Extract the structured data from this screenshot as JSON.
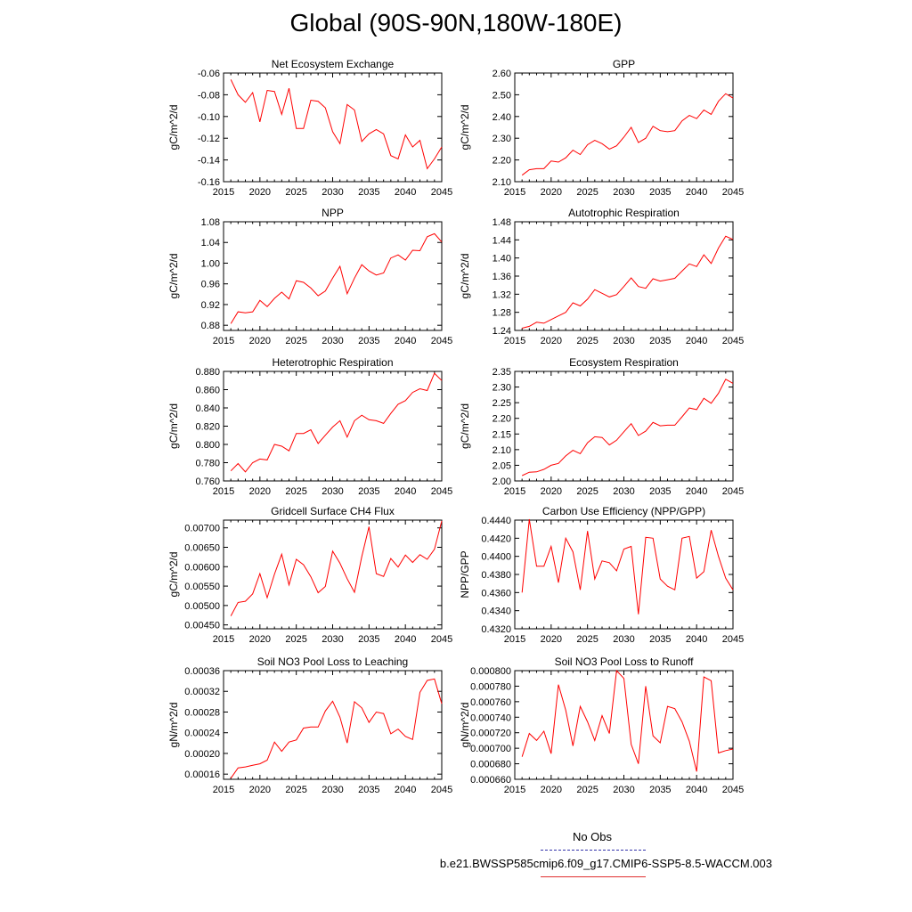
{
  "title": "Global (90S-90N,180W-180E)",
  "legend": {
    "obs_label": "No Obs",
    "run_label": "b.e21.BWSSP585cmip6.f09_g17.CMIP6-SSP5-8.5-WACCM.003",
    "run_color": "#ff0000",
    "obs_color": "#3333aa"
  },
  "chart_data": [
    {
      "type": "line",
      "title": "Net Ecosystem Exchange",
      "ylabel": "gC/m^2/d",
      "xlabel": "",
      "xlim": [
        2015,
        2045
      ],
      "ylim": [
        -0.16,
        -0.06
      ],
      "xticks": [
        2015,
        2020,
        2025,
        2030,
        2035,
        2040,
        2045
      ],
      "yticks": [
        "-0.06",
        "-0.08",
        "-0.10",
        "-0.12",
        "-0.14",
        "-0.16"
      ],
      "x": [
        2016,
        2017,
        2018,
        2019,
        2020,
        2021,
        2022,
        2023,
        2024,
        2025,
        2026,
        2027,
        2028,
        2029,
        2030,
        2031,
        2032,
        2033,
        2034,
        2035,
        2036,
        2037,
        2038,
        2039,
        2040,
        2041,
        2042,
        2043,
        2044,
        2045
      ],
      "series": [
        {
          "name": "b.e21.BWSSP585cmip6.f09_g17.CMIP6-SSP5-8.5-WACCM.003",
          "values": [
            -0.066,
            -0.08,
            -0.087,
            -0.078,
            -0.105,
            -0.076,
            -0.077,
            -0.098,
            -0.074,
            -0.111,
            -0.111,
            -0.085,
            -0.086,
            -0.092,
            -0.114,
            -0.125,
            -0.089,
            -0.094,
            -0.123,
            -0.116,
            -0.112,
            -0.116,
            -0.136,
            -0.139,
            -0.117,
            -0.128,
            -0.122,
            -0.148,
            -0.139,
            -0.128
          ]
        }
      ]
    },
    {
      "type": "line",
      "title": "GPP",
      "ylabel": "gC/m^2/d",
      "xlabel": "",
      "xlim": [
        2015,
        2045
      ],
      "ylim": [
        2.1,
        2.6
      ],
      "xticks": [
        2015,
        2020,
        2025,
        2030,
        2035,
        2040,
        2045
      ],
      "yticks": [
        "2.60",
        "2.50",
        "2.40",
        "2.30",
        "2.20",
        "2.10"
      ],
      "x": [
        2016,
        2017,
        2018,
        2019,
        2020,
        2021,
        2022,
        2023,
        2024,
        2025,
        2026,
        2027,
        2028,
        2029,
        2030,
        2031,
        2032,
        2033,
        2034,
        2035,
        2036,
        2037,
        2038,
        2039,
        2040,
        2041,
        2042,
        2043,
        2044,
        2045
      ],
      "series": [
        {
          "name": "b.e21.BWSSP585cmip6.f09_g17.CMIP6-SSP5-8.5-WACCM.003",
          "values": [
            2.13,
            2.155,
            2.16,
            2.16,
            2.195,
            2.19,
            2.21,
            2.245,
            2.225,
            2.27,
            2.29,
            2.275,
            2.25,
            2.265,
            2.305,
            2.35,
            2.28,
            2.3,
            2.355,
            2.335,
            2.33,
            2.335,
            2.38,
            2.405,
            2.39,
            2.43,
            2.41,
            2.47,
            2.505,
            2.485
          ]
        }
      ]
    },
    {
      "type": "line",
      "title": "NPP",
      "ylabel": "gC/m^2/d",
      "xlabel": "",
      "xlim": [
        2015,
        2045
      ],
      "ylim": [
        0.87,
        1.08
      ],
      "xticks": [
        2015,
        2020,
        2025,
        2030,
        2035,
        2040,
        2045
      ],
      "yticks": [
        "1.08",
        "1.04",
        "1.00",
        "0.96",
        "0.92",
        "0.88"
      ],
      "x": [
        2016,
        2017,
        2018,
        2019,
        2020,
        2021,
        2022,
        2023,
        2024,
        2025,
        2026,
        2027,
        2028,
        2029,
        2030,
        2031,
        2032,
        2033,
        2034,
        2035,
        2036,
        2037,
        2038,
        2039,
        2040,
        2041,
        2042,
        2043,
        2044,
        2045
      ],
      "series": [
        {
          "name": "b.e21.BWSSP585cmip6.f09_g17.CMIP6-SSP5-8.5-WACCM.003",
          "values": [
            0.883,
            0.906,
            0.904,
            0.906,
            0.928,
            0.916,
            0.932,
            0.944,
            0.931,
            0.966,
            0.963,
            0.952,
            0.937,
            0.946,
            0.971,
            0.994,
            0.941,
            0.971,
            0.997,
            0.985,
            0.977,
            0.981,
            1.01,
            1.016,
            1.006,
            1.025,
            1.024,
            1.051,
            1.057,
            1.041
          ]
        }
      ]
    },
    {
      "type": "line",
      "title": "Autotrophic Respiration",
      "ylabel": "gC/m^2/d",
      "xlabel": "",
      "xlim": [
        2015,
        2045
      ],
      "ylim": [
        1.24,
        1.48
      ],
      "xticks": [
        2015,
        2020,
        2025,
        2030,
        2035,
        2040,
        2045
      ],
      "yticks": [
        "1.48",
        "1.44",
        "1.40",
        "1.36",
        "1.32",
        "1.28",
        "1.24"
      ],
      "x": [
        2016,
        2017,
        2018,
        2019,
        2020,
        2021,
        2022,
        2023,
        2024,
        2025,
        2026,
        2027,
        2028,
        2029,
        2030,
        2031,
        2032,
        2033,
        2034,
        2035,
        2036,
        2037,
        2038,
        2039,
        2040,
        2041,
        2042,
        2043,
        2044,
        2045
      ],
      "series": [
        {
          "name": "b.e21.BWSSP585cmip6.f09_g17.CMIP6-SSP5-8.5-WACCM.003",
          "values": [
            1.245,
            1.249,
            1.258,
            1.256,
            1.264,
            1.272,
            1.28,
            1.301,
            1.294,
            1.309,
            1.33,
            1.322,
            1.314,
            1.319,
            1.337,
            1.356,
            1.337,
            1.333,
            1.354,
            1.349,
            1.352,
            1.355,
            1.371,
            1.387,
            1.381,
            1.407,
            1.388,
            1.422,
            1.448,
            1.441
          ]
        }
      ]
    },
    {
      "type": "line",
      "title": "Heterotrophic Respiration",
      "ylabel": "gC/m^2/d",
      "xlabel": "",
      "xlim": [
        2015,
        2045
      ],
      "ylim": [
        0.76,
        0.88
      ],
      "xticks": [
        2015,
        2020,
        2025,
        2030,
        2035,
        2040,
        2045
      ],
      "yticks": [
        "0.880",
        "0.860",
        "0.840",
        "0.820",
        "0.800",
        "0.780",
        "0.760"
      ],
      "x": [
        2016,
        2017,
        2018,
        2019,
        2020,
        2021,
        2022,
        2023,
        2024,
        2025,
        2026,
        2027,
        2028,
        2029,
        2030,
        2031,
        2032,
        2033,
        2034,
        2035,
        2036,
        2037,
        2038,
        2039,
        2040,
        2041,
        2042,
        2043,
        2044,
        2045
      ],
      "series": [
        {
          "name": "b.e21.BWSSP585cmip6.f09_g17.CMIP6-SSP5-8.5-WACCM.003",
          "values": [
            0.771,
            0.779,
            0.77,
            0.78,
            0.784,
            0.783,
            0.8,
            0.798,
            0.793,
            0.812,
            0.812,
            0.816,
            0.801,
            0.81,
            0.819,
            0.826,
            0.808,
            0.826,
            0.832,
            0.827,
            0.826,
            0.823,
            0.834,
            0.844,
            0.848,
            0.857,
            0.861,
            0.859,
            0.878,
            0.87
          ]
        }
      ]
    },
    {
      "type": "line",
      "title": "Ecosystem Respiration",
      "ylabel": "gC/m^2/d",
      "xlabel": "",
      "xlim": [
        2015,
        2045
      ],
      "ylim": [
        2.0,
        2.35
      ],
      "xticks": [
        2015,
        2020,
        2025,
        2030,
        2035,
        2040,
        2045
      ],
      "yticks": [
        "2.35",
        "2.30",
        "2.25",
        "2.20",
        "2.15",
        "2.10",
        "2.05",
        "2.00"
      ],
      "x": [
        2016,
        2017,
        2018,
        2019,
        2020,
        2021,
        2022,
        2023,
        2024,
        2025,
        2026,
        2027,
        2028,
        2029,
        2030,
        2031,
        2032,
        2033,
        2034,
        2035,
        2036,
        2037,
        2038,
        2039,
        2040,
        2041,
        2042,
        2043,
        2044,
        2045
      ],
      "series": [
        {
          "name": "b.e21.BWSSP585cmip6.f09_g17.CMIP6-SSP5-8.5-WACCM.003",
          "values": [
            2.017,
            2.028,
            2.029,
            2.037,
            2.05,
            2.056,
            2.08,
            2.098,
            2.087,
            2.122,
            2.141,
            2.139,
            2.115,
            2.13,
            2.157,
            2.183,
            2.145,
            2.159,
            2.187,
            2.176,
            2.178,
            2.178,
            2.205,
            2.233,
            2.228,
            2.264,
            2.248,
            2.28,
            2.325,
            2.312
          ]
        }
      ]
    },
    {
      "type": "line",
      "title": "Gridcell Surface CH4 Flux",
      "ylabel": "gC/m^2/d",
      "xlabel": "",
      "xlim": [
        2015,
        2045
      ],
      "ylim": [
        0.0044,
        0.0072
      ],
      "xticks": [
        2015,
        2020,
        2025,
        2030,
        2035,
        2040,
        2045
      ],
      "yticks": [
        "0.00700",
        "0.00650",
        "0.00600",
        "0.00550",
        "0.00500",
        "0.00450"
      ],
      "x": [
        2016,
        2017,
        2018,
        2019,
        2020,
        2021,
        2022,
        2023,
        2024,
        2025,
        2026,
        2027,
        2028,
        2029,
        2030,
        2031,
        2032,
        2033,
        2034,
        2035,
        2036,
        2037,
        2038,
        2039,
        2040,
        2041,
        2042,
        2043,
        2044,
        2045
      ],
      "series": [
        {
          "name": "b.e21.BWSSP585cmip6.f09_g17.CMIP6-SSP5-8.5-WACCM.003",
          "values": [
            0.00473,
            0.00508,
            0.00511,
            0.0053,
            0.00582,
            0.0052,
            0.00581,
            0.00632,
            0.00553,
            0.00619,
            0.00605,
            0.00574,
            0.00533,
            0.00549,
            0.0064,
            0.00609,
            0.00569,
            0.00534,
            0.00626,
            0.00703,
            0.00582,
            0.00575,
            0.00621,
            0.00599,
            0.0063,
            0.00611,
            0.00631,
            0.00619,
            0.00645,
            0.00718
          ]
        }
      ]
    },
    {
      "type": "line",
      "title": "Carbon Use Efficiency (NPP/GPP)",
      "ylabel": "NPP/GPP",
      "xlabel": "",
      "xlim": [
        2015,
        2045
      ],
      "ylim": [
        0.432,
        0.444
      ],
      "xticks": [
        2015,
        2020,
        2025,
        2030,
        2035,
        2040,
        2045
      ],
      "yticks": [
        "0.4440",
        "0.4420",
        "0.4400",
        "0.4380",
        "0.4360",
        "0.4340",
        "0.4320"
      ],
      "x": [
        2016,
        2017,
        2018,
        2019,
        2020,
        2021,
        2022,
        2023,
        2024,
        2025,
        2026,
        2027,
        2028,
        2029,
        2030,
        2031,
        2032,
        2033,
        2034,
        2035,
        2036,
        2037,
        2038,
        2039,
        2040,
        2041,
        2042,
        2043,
        2044,
        2045
      ],
      "series": [
        {
          "name": "b.e21.BWSSP585cmip6.f09_g17.CMIP6-SSP5-8.5-WACCM.003",
          "values": [
            0.436,
            0.4441,
            0.4389,
            0.4389,
            0.4411,
            0.4371,
            0.442,
            0.4405,
            0.4363,
            0.4428,
            0.4375,
            0.4395,
            0.4393,
            0.4384,
            0.4408,
            0.4411,
            0.4336,
            0.4421,
            0.442,
            0.4375,
            0.4367,
            0.4363,
            0.442,
            0.4422,
            0.4376,
            0.4383,
            0.4429,
            0.44,
            0.4376,
            0.4363
          ]
        }
      ]
    },
    {
      "type": "line",
      "title": "Soil NO3 Pool Loss to Leaching",
      "ylabel": "gN/m^2/d",
      "xlabel": "",
      "xlim": [
        2015,
        2045
      ],
      "ylim": [
        0.00015,
        0.00036
      ],
      "xticks": [
        2015,
        2020,
        2025,
        2030,
        2035,
        2040,
        2045
      ],
      "yticks": [
        "0.00036",
        "0.00032",
        "0.00028",
        "0.00024",
        "0.00020",
        "0.00016"
      ],
      "x": [
        2016,
        2017,
        2018,
        2019,
        2020,
        2021,
        2022,
        2023,
        2024,
        2025,
        2026,
        2027,
        2028,
        2029,
        2030,
        2031,
        2032,
        2033,
        2034,
        2035,
        2036,
        2037,
        2038,
        2039,
        2040,
        2041,
        2042,
        2043,
        2044,
        2045
      ],
      "series": [
        {
          "name": "b.e21.BWSSP585cmip6.f09_g17.CMIP6-SSP5-8.5-WACCM.003",
          "values": [
            0.000152,
            0.000172,
            0.000174,
            0.000177,
            0.00018,
            0.000187,
            0.000222,
            0.000204,
            0.000222,
            0.000226,
            0.000249,
            0.000251,
            0.000251,
            0.000282,
            0.000301,
            0.00027,
            0.00022,
            0.0003,
            0.000288,
            0.00026,
            0.00028,
            0.000277,
            0.000238,
            0.000247,
            0.000233,
            0.000227,
            0.000318,
            0.000341,
            0.000344,
            0.000296
          ]
        }
      ]
    },
    {
      "type": "line",
      "title": "Soil NO3 Pool Loss to Runoff",
      "ylabel": "gN/m^2/d",
      "xlabel": "",
      "xlim": [
        2015,
        2045
      ],
      "ylim": [
        0.00066,
        0.0008
      ],
      "xticks": [
        2015,
        2020,
        2025,
        2030,
        2035,
        2040,
        2045
      ],
      "yticks": [
        "0.000800",
        "0.000780",
        "0.000760",
        "0.000740",
        "0.000720",
        "0.000700",
        "0.000680",
        "0.000660"
      ],
      "x": [
        2016,
        2017,
        2018,
        2019,
        2020,
        2021,
        2022,
        2023,
        2024,
        2025,
        2026,
        2027,
        2028,
        2029,
        2030,
        2031,
        2032,
        2033,
        2034,
        2035,
        2036,
        2037,
        2038,
        2039,
        2040,
        2041,
        2042,
        2043,
        2044,
        2045
      ],
      "series": [
        {
          "name": "b.e21.BWSSP585cmip6.f09_g17.CMIP6-SSP5-8.5-WACCM.003",
          "values": [
            0.000689,
            0.000719,
            0.00071,
            0.000722,
            0.000693,
            0.000782,
            0.000749,
            0.000703,
            0.000754,
            0.000734,
            0.00071,
            0.000742,
            0.000719,
            0.0008,
            0.00079,
            0.000705,
            0.00068,
            0.00078,
            0.000716,
            0.000707,
            0.000754,
            0.000751,
            0.000734,
            0.000709,
            0.00067,
            0.000792,
            0.000787,
            0.000694,
            0.000697,
            0.000699
          ]
        }
      ]
    }
  ]
}
